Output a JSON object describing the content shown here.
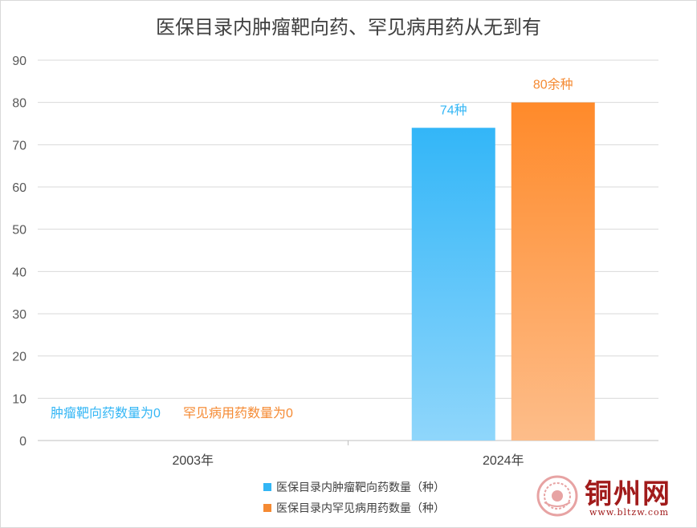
{
  "chart_data": {
    "type": "bar",
    "title": "医保目录内肿瘤靶向药、罕见病用药从无到有",
    "categories": [
      "2003年",
      "2024年"
    ],
    "series": [
      {
        "name": "医保目录内肿瘤靶向药数量（种）",
        "values": [
          0,
          74
        ],
        "color": "#33b6f5",
        "labels": [
          "肿瘤靶向药数量为0",
          "74种"
        ]
      },
      {
        "name": "医保目录内罕见病用药数量（种）",
        "values": [
          0,
          80
        ],
        "color": "#f58a33",
        "labels": [
          "罕见病用药数量为0",
          "80余种"
        ]
      }
    ],
    "yticks": [
      "0",
      "10",
      "20",
      "30",
      "40",
      "50",
      "60",
      "70",
      "80",
      "90"
    ],
    "ylim": [
      0,
      90
    ],
    "grid": true,
    "legend_position": "bottom"
  },
  "watermark": {
    "name": "铜州网",
    "url": "www.bltzw.com"
  }
}
